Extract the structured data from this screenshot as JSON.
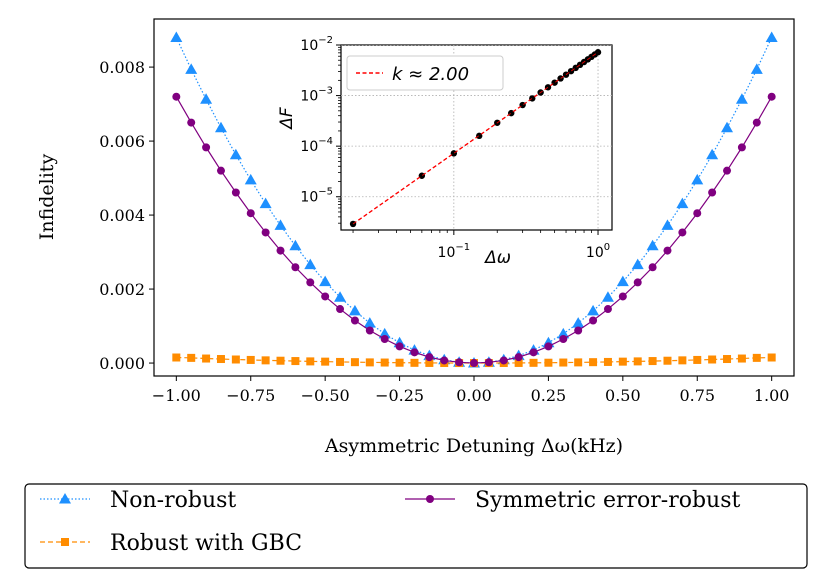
{
  "chart_data": [
    {
      "type": "line",
      "title": "",
      "xlabel": "Asymmetric Detuning Δω(kHz)",
      "ylabel": "Infidelity",
      "xlim": [
        -1.075,
        1.075
      ],
      "ylim": [
        -0.00035,
        0.0093
      ],
      "xticks": [
        -1.0,
        -0.75,
        -0.5,
        -0.25,
        0.0,
        0.25,
        0.5,
        0.75,
        1.0
      ],
      "xticklabels": [
        "−1.00",
        "−0.75",
        "−0.50",
        "−0.25",
        "0.00",
        "0.25",
        "0.50",
        "0.75",
        "1.00"
      ],
      "yticks": [
        0.0,
        0.002,
        0.004,
        0.006,
        0.008
      ],
      "yticklabels": [
        "0.000",
        "0.002",
        "0.004",
        "0.006",
        "0.008"
      ],
      "grid": false,
      "legend_placement": "below",
      "x_range": [
        -1.0,
        1.0
      ],
      "n_points": 41,
      "series": [
        {
          "name": "Non-robust",
          "marker": "triangle",
          "linestyle": "dotted",
          "color": "#1e90ff",
          "values": [
            0.0088,
            0.00794,
            0.00713,
            0.00636,
            0.00563,
            0.00495,
            0.00431,
            0.00372,
            0.00317,
            0.00266,
            0.0022,
            0.00178,
            0.00141,
            0.00108,
            0.00079,
            0.00055,
            0.00035,
            0.0002,
            9e-05,
            2e-05,
            0.0,
            2e-05,
            9e-05,
            0.0002,
            0.00035,
            0.00055,
            0.00079,
            0.00108,
            0.00141,
            0.00178,
            0.0022,
            0.00266,
            0.00317,
            0.00372,
            0.00431,
            0.00495,
            0.00563,
            0.00636,
            0.00713,
            0.00794,
            0.0088
          ]
        },
        {
          "name": "Robust with GBC",
          "marker": "square",
          "linestyle": "dashed",
          "color": "#ff8c00",
          "values": [
            0.00015,
            0.00014,
            0.000122,
            0.000109,
            9.6e-05,
            8.4e-05,
            7.3e-05,
            6.3e-05,
            5.4e-05,
            4.5e-05,
            3.8e-05,
            3e-05,
            2.4e-05,
            1.8e-05,
            1.4e-05,
            9e-06,
            6e-06,
            3e-06,
            2e-06,
            0.0,
            0.0,
            0.0,
            2e-06,
            3e-06,
            6e-06,
            9e-06,
            1.4e-05,
            1.8e-05,
            2.4e-05,
            3e-05,
            3.8e-05,
            4.5e-05,
            5.4e-05,
            6.3e-05,
            7.3e-05,
            8.4e-05,
            9.6e-05,
            0.000109,
            0.000122,
            0.00014,
            0.00015
          ]
        },
        {
          "name": "Symmetric error-robust",
          "marker": "circle",
          "linestyle": "solid",
          "color": "#800080",
          "values": [
            0.0072,
            0.0065,
            0.00583,
            0.0052,
            0.00461,
            0.00405,
            0.00353,
            0.00304,
            0.00259,
            0.00218,
            0.0018,
            0.00146,
            0.00115,
            0.00088,
            0.00065,
            0.00045,
            0.00029,
            0.00016,
            7e-05,
            2e-05,
            0.0,
            2e-05,
            7e-05,
            0.00016,
            0.00029,
            0.00045,
            0.00065,
            0.00088,
            0.00115,
            0.00146,
            0.0018,
            0.00218,
            0.00259,
            0.00304,
            0.00353,
            0.00405,
            0.00461,
            0.0052,
            0.00583,
            0.0065,
            0.0072
          ]
        }
      ]
    },
    {
      "type": "line",
      "title": "",
      "scale": "log-log",
      "xlabel": "Δω",
      "ylabel": "ΔF",
      "xlim": [
        0.0165,
        1.25
      ],
      "ylim": [
        2.2e-06,
        0.01
      ],
      "xticklabels": [
        "10^-1",
        "10^0"
      ],
      "yticklabels": [
        "10^-5",
        "10^-4",
        "10^-3",
        "10^-2"
      ],
      "grid": true,
      "legend_placement": "upper-left",
      "series": [
        {
          "name": "k ≈ 2.00",
          "style": "dashed",
          "color": "#ff0000",
          "x": [
            0.02,
            1.0
          ],
          "y": [
            2.9e-06,
            0.0072
          ]
        },
        {
          "name": "",
          "style": "points",
          "color": "#000000",
          "x": [
            0.02,
            0.06,
            0.1,
            0.15,
            0.2,
            0.25,
            0.3,
            0.35,
            0.4,
            0.45,
            0.5,
            0.55,
            0.6,
            0.65,
            0.7,
            0.75,
            0.8,
            0.85,
            0.9,
            0.95,
            1.0
          ],
          "y": [
            2.9e-06,
            2.6e-05,
            7.2e-05,
            0.00016,
            0.00029,
            0.00045,
            0.00065,
            0.00088,
            0.00115,
            0.00146,
            0.0018,
            0.00218,
            0.00259,
            0.00304,
            0.00353,
            0.00405,
            0.00461,
            0.0052,
            0.00583,
            0.0065,
            0.0072
          ]
        }
      ]
    }
  ]
}
